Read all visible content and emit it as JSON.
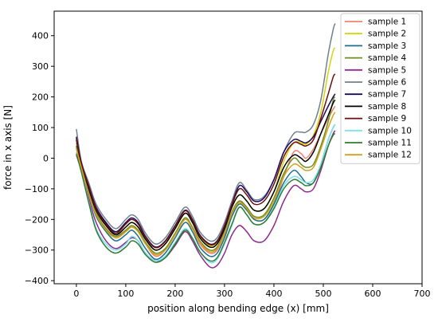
{
  "chart_data": {
    "type": "line",
    "title": "",
    "xlabel": "position along bending edge (x) [mm]",
    "ylabel": "force in x axis [N]",
    "xlim": [
      -45,
      700
    ],
    "ylim": [
      -410,
      480
    ],
    "x_ticks": [
      0,
      100,
      200,
      300,
      400,
      500,
      600,
      700
    ],
    "y_ticks": [
      -400,
      -300,
      -200,
      -100,
      0,
      100,
      200,
      300,
      400
    ],
    "x_tick_labels": [
      "0",
      "100",
      "200",
      "300",
      "400",
      "500",
      "600",
      "700"
    ],
    "y_tick_labels": [
      "−400",
      "−300",
      "−200",
      "−100",
      "0",
      "100",
      "200",
      "300",
      "400"
    ],
    "grid": false,
    "legend_position": "top-right",
    "x": [
      0,
      10,
      25,
      40,
      60,
      80,
      100,
      112,
      125,
      140,
      160,
      180,
      200,
      220,
      235,
      250,
      270,
      285,
      300,
      315,
      330,
      345,
      360,
      380,
      400,
      420,
      440,
      455,
      465,
      480,
      495,
      510,
      520,
      524
    ],
    "series": [
      {
        "name": "sample 1",
        "color": "#f08070",
        "values": [
          50,
          -30,
          -110,
          -180,
          -230,
          -260,
          -240,
          -225,
          -240,
          -280,
          -320,
          -300,
          -250,
          -200,
          -230,
          -280,
          -310,
          -300,
          -250,
          -180,
          -140,
          -165,
          -200,
          -200,
          -150,
          -60,
          20,
          15,
          0,
          30,
          80,
          130,
          160,
          170
        ]
      },
      {
        "name": "sample 2",
        "color": "#d4d40a",
        "values": [
          45,
          -25,
          -105,
          -175,
          -220,
          -250,
          -225,
          -210,
          -225,
          -265,
          -300,
          -280,
          -230,
          -180,
          -205,
          -255,
          -285,
          -275,
          -225,
          -160,
          -120,
          -140,
          -170,
          -165,
          -110,
          -10,
          50,
          50,
          45,
          75,
          150,
          280,
          350,
          360
        ]
      },
      {
        "name": "sample 3",
        "color": "#1f6f8b",
        "values": [
          40,
          -28,
          -115,
          -190,
          -240,
          -270,
          -250,
          -235,
          -255,
          -295,
          -330,
          -310,
          -260,
          -210,
          -240,
          -290,
          -320,
          -310,
          -260,
          -190,
          -150,
          -170,
          -200,
          -200,
          -150,
          -80,
          -40,
          -60,
          -80,
          -80,
          -20,
          60,
          100,
          110
        ]
      },
      {
        "name": "sample 4",
        "color": "#6b8e23",
        "values": [
          35,
          -30,
          -110,
          -180,
          -230,
          -255,
          -235,
          -220,
          -235,
          -275,
          -310,
          -295,
          -245,
          -195,
          -225,
          -270,
          -300,
          -290,
          -240,
          -175,
          -140,
          -160,
          -190,
          -185,
          -130,
          -50,
          0,
          -20,
          -30,
          -20,
          40,
          120,
          190,
          200
        ]
      },
      {
        "name": "sample 5",
        "color": "#8e2a8e",
        "values": [
          10,
          -40,
          -130,
          -210,
          -270,
          -295,
          -275,
          -260,
          -270,
          -310,
          -335,
          -325,
          -285,
          -240,
          -270,
          -315,
          -355,
          -350,
          -310,
          -250,
          -220,
          -240,
          -270,
          -270,
          -220,
          -140,
          -90,
          -100,
          -110,
          -100,
          -40,
          40,
          80,
          90
        ]
      },
      {
        "name": "sample 6",
        "color": "#708090",
        "values": [
          95,
          -10,
          -80,
          -150,
          -200,
          -230,
          -200,
          -185,
          -200,
          -245,
          -280,
          -260,
          -210,
          -160,
          -190,
          -240,
          -270,
          -260,
          -210,
          -140,
          -80,
          -105,
          -135,
          -125,
          -70,
          20,
          80,
          85,
          85,
          110,
          190,
          340,
          420,
          440
        ]
      },
      {
        "name": "sample 7",
        "color": "#1a0a5e",
        "values": [
          70,
          -15,
          -90,
          -160,
          -210,
          -240,
          -210,
          -195,
          -210,
          -255,
          -290,
          -270,
          -220,
          -170,
          -200,
          -250,
          -280,
          -270,
          -220,
          -150,
          -90,
          -110,
          -140,
          -130,
          -70,
          20,
          60,
          55,
          50,
          70,
          120,
          170,
          200,
          210
        ]
      },
      {
        "name": "sample 8",
        "color": "#000000",
        "values": [
          60,
          -20,
          -100,
          -170,
          -220,
          -250,
          -225,
          -210,
          -225,
          -265,
          -300,
          -280,
          -230,
          -180,
          -210,
          -260,
          -290,
          -280,
          -230,
          -160,
          -120,
          -140,
          -170,
          -165,
          -110,
          -30,
          10,
          0,
          -10,
          20,
          80,
          140,
          180,
          190
        ]
      },
      {
        "name": "sample 9",
        "color": "#6b1010",
        "values": [
          65,
          -18,
          -92,
          -165,
          -215,
          -245,
          -215,
          -200,
          -215,
          -258,
          -292,
          -272,
          -222,
          -172,
          -202,
          -252,
          -282,
          -272,
          -222,
          -152,
          -100,
          -120,
          -150,
          -140,
          -85,
          5,
          50,
          45,
          40,
          60,
          130,
          210,
          265,
          275
        ]
      },
      {
        "name": "sample 10",
        "color": "#7fe0f0",
        "values": [
          20,
          -40,
          -140,
          -230,
          -280,
          -300,
          -280,
          -255,
          -270,
          -310,
          -335,
          -320,
          -275,
          -230,
          -260,
          -305,
          -340,
          -330,
          -280,
          -220,
          -160,
          -185,
          -215,
          -210,
          -160,
          -90,
          -60,
          -70,
          -80,
          -70,
          -20,
          60,
          100,
          110
        ]
      },
      {
        "name": "sample 11",
        "color": "#2e7d32",
        "values": [
          15,
          -45,
          -145,
          -235,
          -290,
          -310,
          -290,
          -270,
          -280,
          -315,
          -340,
          -325,
          -280,
          -235,
          -262,
          -305,
          -335,
          -325,
          -275,
          -215,
          -160,
          -185,
          -215,
          -210,
          -165,
          -100,
          -70,
          -80,
          -90,
          -80,
          -30,
          40,
          75,
          80
        ]
      },
      {
        "name": "sample 12",
        "color": "#d4a017",
        "values": [
          30,
          -30,
          -115,
          -185,
          -235,
          -260,
          -240,
          -225,
          -240,
          -280,
          -315,
          -300,
          -250,
          -200,
          -230,
          -275,
          -305,
          -295,
          -245,
          -180,
          -145,
          -165,
          -195,
          -190,
          -140,
          -60,
          -20,
          -30,
          -40,
          -30,
          30,
          100,
          140,
          150
        ]
      }
    ]
  }
}
